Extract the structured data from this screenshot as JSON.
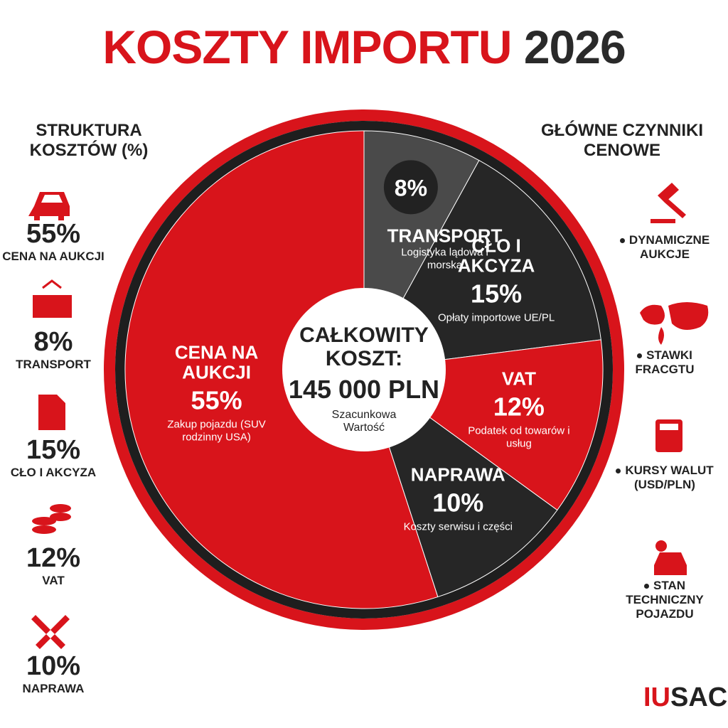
{
  "header": {
    "title": "KOSZTY IMPORTU",
    "year": "2026"
  },
  "chart_data": {
    "type": "pie",
    "categories": [
      "TRANSPORT",
      "CŁO I AKCYZA",
      "VAT",
      "NAPRAWA",
      "CENA NA AUKCJI"
    ],
    "values": [
      8,
      15,
      12,
      10,
      55
    ],
    "value_labels": [
      "8%",
      "15%",
      "12%",
      "10%",
      "55%"
    ],
    "descriptions": [
      "Logistyka lądowa i morska",
      "Opłaty importowe UE/PL",
      "Podatek od towarów i usług",
      "Koszty serwisu i części",
      "Zakup pojazdu (SUV rodzinny USA)"
    ],
    "colors": [
      "#4a4a4a",
      "#262626",
      "#d8141b",
      "#262626",
      "#d8141b"
    ],
    "center": {
      "title": "CAŁKOWITY KOSZT:",
      "total": "145 000 PLN",
      "note": "Szacunkowa Wartość"
    }
  },
  "legend": {
    "title": "STRUKTURA KOSZTÓW (%)",
    "order": [
      4,
      0,
      1,
      2,
      3
    ]
  },
  "factors": {
    "title": "GŁÓWNE CZYNNIKI CENOWE",
    "items": [
      "DYNAMICZNE AUKCJE",
      "STAWKI FRACGTU",
      "KURSY WALUT (USD/PLN)",
      "STAN TECHNICZNY POJAZDU"
    ]
  },
  "logo": {
    "accent": "IU",
    "rest": "SAC"
  }
}
